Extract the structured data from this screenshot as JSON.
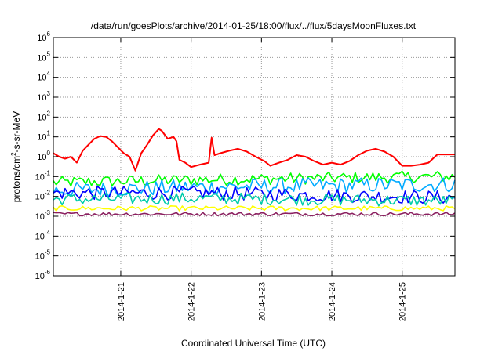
{
  "chart_data": {
    "type": "line",
    "title": "/data/run/goesPlots/archive/2014-01-25/18:00/flux/../flux/5daysMoonFluxes.txt",
    "xlabel": "Coordinated Universal Time (UTC)",
    "ylabel_parts": [
      "protons/cm",
      "2",
      "-s-sr-MeV"
    ],
    "yscale": "log",
    "ylim": [
      1e-06,
      1000000.0
    ],
    "y_ticks": [
      {
        "base": "10",
        "exp": "-6",
        "value": 1e-06
      },
      {
        "base": "10",
        "exp": "-5",
        "value": 1e-05
      },
      {
        "base": "10",
        "exp": "-4",
        "value": 0.0001
      },
      {
        "base": "10",
        "exp": "-3",
        "value": 0.001
      },
      {
        "base": "10",
        "exp": "-2",
        "value": 0.01
      },
      {
        "base": "10",
        "exp": "-1",
        "value": 0.1
      },
      {
        "base": "10",
        "exp": "0",
        "value": 1
      },
      {
        "base": "10",
        "exp": "1",
        "value": 10
      },
      {
        "base": "10",
        "exp": "2",
        "value": 100
      },
      {
        "base": "10",
        "exp": "3",
        "value": 1000
      },
      {
        "base": "10",
        "exp": "4",
        "value": 10000
      },
      {
        "base": "10",
        "exp": "5",
        "value": 100000
      },
      {
        "base": "10",
        "exp": "6",
        "value": 1000000
      }
    ],
    "xlim": [
      "2014-01-20T01:00",
      "2014-01-25T18:00"
    ],
    "x_ticks": [
      "2014-1-21",
      "2014-1-22",
      "2014-1-23",
      "2014-1-24",
      "2014-1-25"
    ],
    "grid": true,
    "series": [
      {
        "color": "#ff0000",
        "points": [
          [
            "2014-01-20T01:00",
            1.5
          ],
          [
            "2014-01-20T03:00",
            1.0
          ],
          [
            "2014-01-20T05:00",
            0.8
          ],
          [
            "2014-01-20T07:00",
            1.0
          ],
          [
            "2014-01-20T09:00",
            0.5
          ],
          [
            "2014-01-20T11:00",
            2.0
          ],
          [
            "2014-01-20T13:00",
            4.0
          ],
          [
            "2014-01-20T15:00",
            8.0
          ],
          [
            "2014-01-20T17:00",
            11
          ],
          [
            "2014-01-20T19:00",
            10
          ],
          [
            "2014-01-20T21:00",
            6.0
          ],
          [
            "2014-01-20T23:00",
            3.0
          ],
          [
            "2014-01-21T01:00",
            1.5
          ],
          [
            "2014-01-21T03:00",
            1.0
          ],
          [
            "2014-01-21T05:00",
            0.2
          ],
          [
            "2014-01-21T07:00",
            1.5
          ],
          [
            "2014-01-21T09:00",
            4.0
          ],
          [
            "2014-01-21T11:00",
            12
          ],
          [
            "2014-01-21T13:00",
            25
          ],
          [
            "2014-01-21T14:00",
            20
          ],
          [
            "2014-01-21T16:00",
            8.0
          ],
          [
            "2014-01-21T18:00",
            10
          ],
          [
            "2014-01-21T19:00",
            6.0
          ],
          [
            "2014-01-21T20:00",
            0.7
          ],
          [
            "2014-01-21T22:00",
            0.5
          ],
          [
            "2014-01-22T00:00",
            0.3
          ],
          [
            "2014-01-22T03:00",
            0.4
          ],
          [
            "2014-01-22T06:00",
            0.5
          ],
          [
            "2014-01-22T07:00",
            9.0
          ],
          [
            "2014-01-22T08:00",
            1.2
          ],
          [
            "2014-01-22T10:00",
            1.5
          ],
          [
            "2014-01-22T13:00",
            2.0
          ],
          [
            "2014-01-22T16:00",
            2.5
          ],
          [
            "2014-01-22T19:00",
            1.8
          ],
          [
            "2014-01-22T22:00",
            1.0
          ],
          [
            "2014-01-23T01:00",
            0.6
          ],
          [
            "2014-01-23T03:00",
            0.35
          ],
          [
            "2014-01-23T06:00",
            0.5
          ],
          [
            "2014-01-23T09:00",
            0.7
          ],
          [
            "2014-01-23T12:00",
            1.2
          ],
          [
            "2014-01-23T15:00",
            1.0
          ],
          [
            "2014-01-23T18:00",
            0.6
          ],
          [
            "2014-01-23T21:00",
            0.4
          ],
          [
            "2014-01-24T00:00",
            0.5
          ],
          [
            "2014-01-24T03:00",
            0.4
          ],
          [
            "2014-01-24T06:00",
            0.6
          ],
          [
            "2014-01-24T09:00",
            1.2
          ],
          [
            "2014-01-24T12:00",
            2.0
          ],
          [
            "2014-01-24T15:00",
            2.5
          ],
          [
            "2014-01-24T18:00",
            1.8
          ],
          [
            "2014-01-24T21:00",
            1.0
          ],
          [
            "2014-01-25T00:00",
            0.35
          ],
          [
            "2014-01-25T03:00",
            0.35
          ],
          [
            "2014-01-25T06:00",
            0.4
          ],
          [
            "2014-01-25T09:00",
            0.5
          ],
          [
            "2014-01-25T12:00",
            1.3
          ],
          [
            "2014-01-25T18:00",
            1.3
          ]
        ]
      },
      {
        "color": "#00ff00",
        "level": 0.08,
        "spread": 0.6,
        "segments": [
          [
            "2014-01-20T01:00",
            0.05
          ],
          [
            "2014-01-22T04:00",
            0.07
          ],
          [
            "2014-01-25T12:00",
            0.1
          ],
          [
            "2014-01-25T18:00",
            0.1
          ]
        ]
      },
      {
        "color": "#00aaff",
        "spread": 0.8,
        "segments": [
          [
            "2014-01-20T01:00",
            0.02
          ],
          [
            "2014-01-22T04:00",
            0.03
          ],
          [
            "2014-01-25T12:00",
            0.04
          ],
          [
            "2014-01-25T18:00",
            0.04
          ]
        ]
      },
      {
        "color": "#0000ff",
        "spread": 0.7,
        "segments": [
          [
            "2014-01-20T01:00",
            0.015
          ],
          [
            "2014-01-22T04:00",
            0.015
          ],
          [
            "2014-01-25T12:00",
            0.009
          ],
          [
            "2014-01-25T18:00",
            0.009
          ]
        ]
      },
      {
        "color": "#00ccaa",
        "spread": 0.6,
        "segments": [
          [
            "2014-01-20T01:00",
            0.007
          ],
          [
            "2014-01-22T04:00",
            0.008
          ],
          [
            "2014-01-25T12:00",
            0.006
          ],
          [
            "2014-01-25T18:00",
            0.006
          ]
        ]
      },
      {
        "color": "#ffff00",
        "spread": 0.25,
        "segments": [
          [
            "2014-01-20T01:00",
            0.0025
          ],
          [
            "2014-01-25T18:00",
            0.0025
          ]
        ]
      },
      {
        "color": "#8b2060",
        "spread": 0.18,
        "segments": [
          [
            "2014-01-20T01:00",
            0.0013
          ],
          [
            "2014-01-25T18:00",
            0.0013
          ]
        ]
      }
    ]
  }
}
